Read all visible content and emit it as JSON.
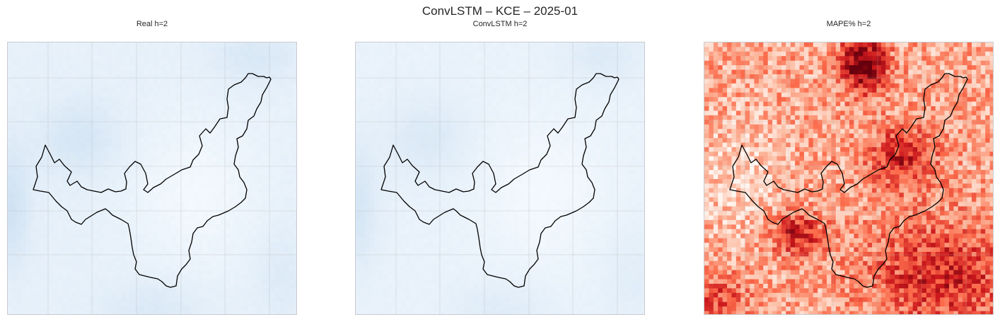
{
  "suptitle": "ConvLSTM – KCE – 2025-01",
  "chart_data": [
    {
      "type": "heatmap",
      "title": "Real h=2",
      "colormap": "Blues",
      "grid": true,
      "overlay": "region outline (black)"
    },
    {
      "type": "heatmap",
      "title": "ConvLSTM h=2",
      "colormap": "Blues",
      "grid": true,
      "overlay": "region outline (black)"
    },
    {
      "type": "heatmap",
      "title": "MAPE% h=2",
      "colormap": "Reds",
      "grid": true,
      "overlay": "region outline (black)"
    }
  ]
}
